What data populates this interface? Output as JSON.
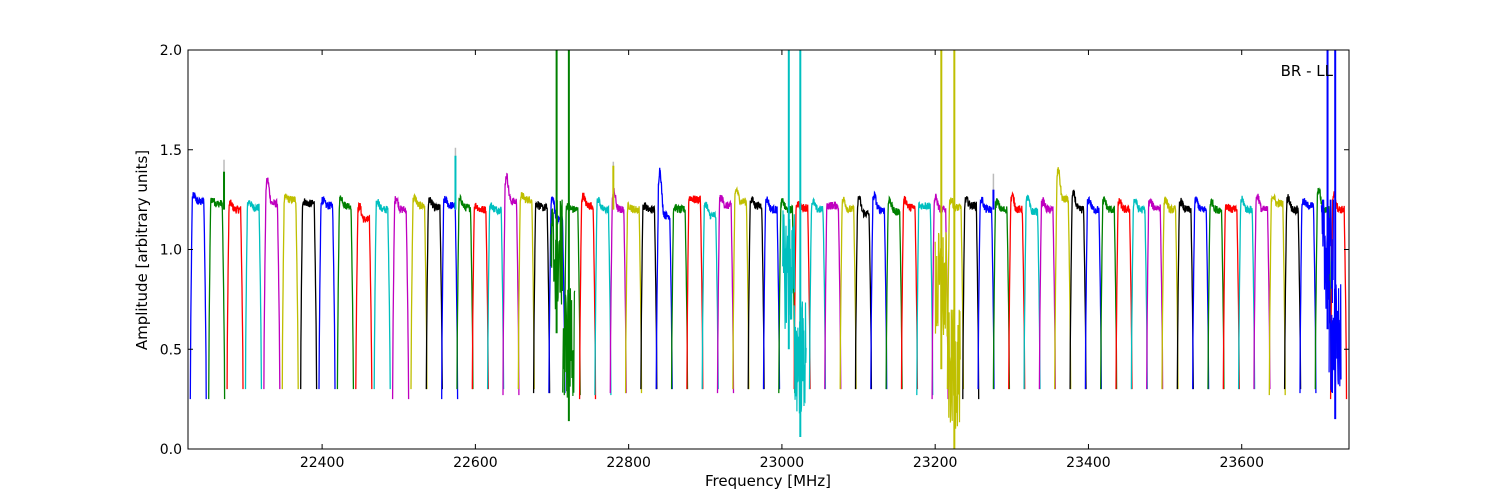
{
  "chart_data": {
    "type": "line",
    "title": "",
    "xlabel": "Frequency [MHz]",
    "ylabel": "Amplitude [arbitrary units]",
    "xlim": [
      22225,
      23740
    ],
    "ylim": [
      0.0,
      2.0
    ],
    "xticks": [
      22400,
      22600,
      22800,
      23000,
      23200,
      23400,
      23600
    ],
    "yticks": [
      0.0,
      0.5,
      1.0,
      1.5,
      2.0
    ],
    "grid": false,
    "legend": "none",
    "annotation": "BR - LL",
    "colors": [
      "#0000ff",
      "#008000",
      "#ff0000",
      "#00bfbf",
      "#bf00bf",
      "#bfbf00",
      "#000000"
    ],
    "ghost_color": "#bbbbbb",
    "channel_width_mhz": 20.8,
    "channel_starts_mhz": [
      22228,
      22252,
      22276,
      22300,
      22324,
      22348,
      22372,
      22396,
      22420,
      22444,
      22468,
      22492,
      22516,
      22536,
      22556,
      22576,
      22596,
      22616,
      22636,
      22656,
      22676,
      22696,
      22716,
      22736,
      22756,
      22776,
      22796,
      22816,
      22836,
      22856,
      22876,
      22896,
      22916,
      22936,
      22956,
      22976,
      22996,
      23016,
      23036,
      23056,
      23076,
      23096,
      23116,
      23136,
      23156,
      23176,
      23196,
      23216,
      23236,
      23256,
      23276,
      23296,
      23316,
      23336,
      23356,
      23376,
      23396,
      23416,
      23436,
      23456,
      23476,
      23496,
      23516,
      23536,
      23556,
      23576,
      23596,
      23616,
      23636,
      23656,
      23676,
      23696,
      23716
    ],
    "channel_plateau": [
      1.24,
      1.23,
      1.2,
      1.21,
      1.23,
      1.25,
      1.23,
      1.22,
      1.22,
      1.15,
      1.2,
      1.2,
      1.22,
      1.21,
      1.22,
      1.21,
      1.2,
      1.2,
      1.24,
      1.25,
      1.21,
      1.15,
      1.2,
      1.22,
      1.2,
      1.2,
      1.2,
      1.2,
      1.17,
      1.2,
      1.25,
      1.17,
      1.22,
      1.24,
      1.22,
      1.2,
      1.2,
      1.21,
      1.2,
      1.22,
      1.2,
      1.18,
      1.2,
      1.19,
      1.21,
      1.22,
      1.2,
      1.21,
      1.22,
      1.2,
      1.2,
      1.2,
      1.19,
      1.2,
      1.25,
      1.2,
      1.2,
      1.2,
      1.2,
      1.2,
      1.21,
      1.2,
      1.2,
      1.2,
      1.2,
      1.2,
      1.2,
      1.2,
      1.23,
      1.2,
      1.22,
      1.2,
      1.2
    ],
    "channel_peak": [
      1.27,
      1.25,
      1.23,
      1.24,
      1.35,
      1.26,
      1.24,
      1.25,
      1.26,
      1.22,
      1.24,
      1.26,
      1.26,
      1.25,
      1.25,
      1.25,
      1.22,
      1.22,
      1.37,
      1.27,
      1.23,
      1.26,
      1.22,
      1.27,
      1.25,
      1.29,
      1.22,
      1.22,
      1.4,
      1.21,
      1.26,
      1.23,
      1.26,
      1.3,
      1.25,
      1.25,
      1.24,
      1.23,
      1.24,
      1.22,
      1.25,
      1.26,
      1.27,
      1.25,
      1.25,
      1.22,
      1.26,
      1.25,
      1.25,
      1.25,
      1.24,
      1.27,
      1.26,
      1.24,
      1.4,
      1.28,
      1.25,
      1.25,
      1.24,
      1.25,
      1.24,
      1.25,
      1.24,
      1.25,
      1.24,
      1.22,
      1.25,
      1.27,
      1.27,
      1.26,
      1.24,
      1.3,
      1.28
    ],
    "channel_floor": [
      0.25,
      0.25,
      0.3,
      0.3,
      0.3,
      0.3,
      0.3,
      0.3,
      0.3,
      0.3,
      0.3,
      0.25,
      0.3,
      0.3,
      0.25,
      0.3,
      0.3,
      0.3,
      0.27,
      0.3,
      0.28,
      0.28,
      0.27,
      0.25,
      0.27,
      0.28,
      0.28,
      0.3,
      0.3,
      0.3,
      0.3,
      0.3,
      0.28,
      0.3,
      0.3,
      0.3,
      0.28,
      0.3,
      0.3,
      0.3,
      0.3,
      0.3,
      0.3,
      0.3,
      0.3,
      0.27,
      0.25,
      0.3,
      0.25,
      0.3,
      0.3,
      0.3,
      0.3,
      0.3,
      0.3,
      0.3,
      0.3,
      0.3,
      0.3,
      0.3,
      0.3,
      0.3,
      0.3,
      0.3,
      0.3,
      0.3,
      0.3,
      0.3,
      0.27,
      0.3,
      0.28,
      0.3,
      0.25
    ],
    "spikes": [
      {
        "x": 22272,
        "y": 1.39,
        "color": "#008000",
        "ghost": 1.45
      },
      {
        "x": 22574,
        "y": 1.47,
        "color": "#00bfbf",
        "ghost": 1.51
      },
      {
        "x": 22706,
        "y": 2.0,
        "color": "#008000",
        "low": 0.58
      },
      {
        "x": 22722,
        "y": 2.0,
        "color": "#008000",
        "low": 0.14
      },
      {
        "x": 22780,
        "y": 1.42,
        "color": "#bfbf00",
        "ghost": 1.44
      },
      {
        "x": 23009,
        "y": 2.0,
        "color": "#00bfbf",
        "low": 0.5
      },
      {
        "x": 23024,
        "y": 2.0,
        "color": "#00bfbf",
        "low": 0.06
      },
      {
        "x": 23208,
        "y": 2.0,
        "color": "#bfbf00",
        "low": 0.4
      },
      {
        "x": 23225,
        "y": 2.0,
        "color": "#bfbf00",
        "low": 0.0
      },
      {
        "x": 23276,
        "y": 1.3,
        "color": "#0000ff",
        "ghost": 1.38
      },
      {
        "x": 23712,
        "y": 2.0,
        "color": "#0000ff",
        "low": 0.6
      },
      {
        "x": 23722,
        "y": 2.0,
        "color": "#0000ff",
        "low": 0.15
      }
    ]
  }
}
